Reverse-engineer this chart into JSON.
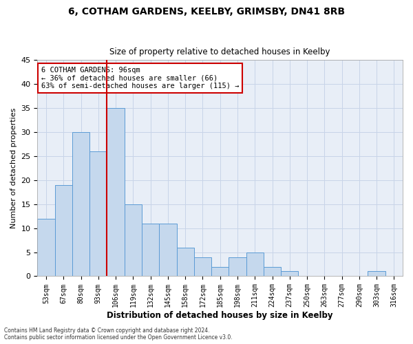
{
  "title1": "6, COTHAM GARDENS, KEELBY, GRIMSBY, DN41 8RB",
  "title2": "Size of property relative to detached houses in Keelby",
  "xlabel": "Distribution of detached houses by size in Keelby",
  "ylabel": "Number of detached properties",
  "categories": [
    "53sqm",
    "67sqm",
    "80sqm",
    "93sqm",
    "106sqm",
    "119sqm",
    "132sqm",
    "145sqm",
    "158sqm",
    "172sqm",
    "185sqm",
    "198sqm",
    "211sqm",
    "224sqm",
    "237sqm",
    "250sqm",
    "263sqm",
    "277sqm",
    "290sqm",
    "303sqm",
    "316sqm"
  ],
  "values": [
    12,
    19,
    30,
    26,
    35,
    15,
    11,
    11,
    6,
    4,
    2,
    4,
    5,
    2,
    1,
    0,
    0,
    0,
    0,
    1,
    0
  ],
  "bar_color": "#c5d8ed",
  "bar_edge_color": "#5b9bd5",
  "vline_x": 3.5,
  "vline_color": "#cc0000",
  "annotation_text": "6 COTHAM GARDENS: 96sqm\n← 36% of detached houses are smaller (66)\n63% of semi-detached houses are larger (115) →",
  "annotation_box_color": "#ffffff",
  "annotation_box_edge": "#cc0000",
  "ylim": [
    0,
    45
  ],
  "yticks": [
    0,
    5,
    10,
    15,
    20,
    25,
    30,
    35,
    40,
    45
  ],
  "footer1": "Contains HM Land Registry data © Crown copyright and database right 2024.",
  "footer2": "Contains public sector information licensed under the Open Government Licence v3.0.",
  "bg_color": "#ffffff",
  "plot_bg_color": "#e8eef7",
  "grid_color": "#c8d4e8"
}
